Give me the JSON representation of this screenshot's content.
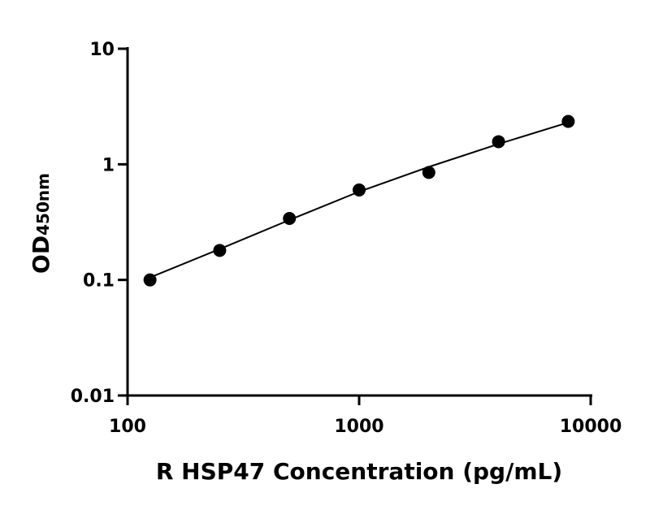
{
  "chart_data": {
    "type": "scatter",
    "x_label": "R HSP47 Concentration (pg/mL)",
    "y_label": "OD",
    "y_label_subscript": "450nm",
    "xscale": "log",
    "yscale": "log",
    "xlim": [
      100,
      10000
    ],
    "xticks": [
      100,
      1000,
      10000
    ],
    "ylim": [
      0.01,
      10
    ],
    "yticks": [
      0.01,
      0.1,
      1,
      10
    ],
    "series": [
      {
        "type": "scatter",
        "color": "#000000",
        "x": [
          125,
          250,
          500,
          1000,
          2000,
          4000,
          8000
        ],
        "values": [
          0.1,
          0.18,
          0.34,
          0.6,
          0.85,
          1.57,
          2.35
        ]
      },
      {
        "type": "line",
        "color": "#000000",
        "x": [
          125,
          250,
          500,
          1000,
          2000,
          4000,
          8000
        ],
        "values": [
          0.105,
          0.185,
          0.33,
          0.58,
          0.95,
          1.5,
          2.3
        ]
      }
    ]
  }
}
